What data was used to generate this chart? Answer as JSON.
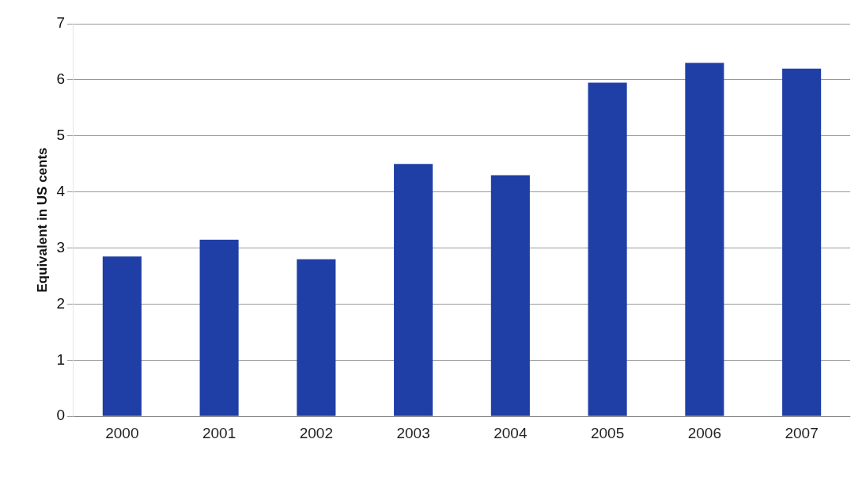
{
  "chart_data": {
    "type": "bar",
    "ylabel": "Equivalent in US cents",
    "categories": [
      "2000",
      "2001",
      "2002",
      "2003",
      "2004",
      "2005",
      "2006",
      "2007"
    ],
    "values": [
      2.85,
      3.15,
      2.8,
      4.5,
      4.3,
      5.95,
      6.3,
      6.2
    ],
    "color": "#1f3fa6",
    "ylim": [
      0,
      7
    ],
    "yticks": [
      0,
      1,
      2,
      3,
      4,
      5,
      6,
      7
    ],
    "grid": "y",
    "legend": false
  }
}
